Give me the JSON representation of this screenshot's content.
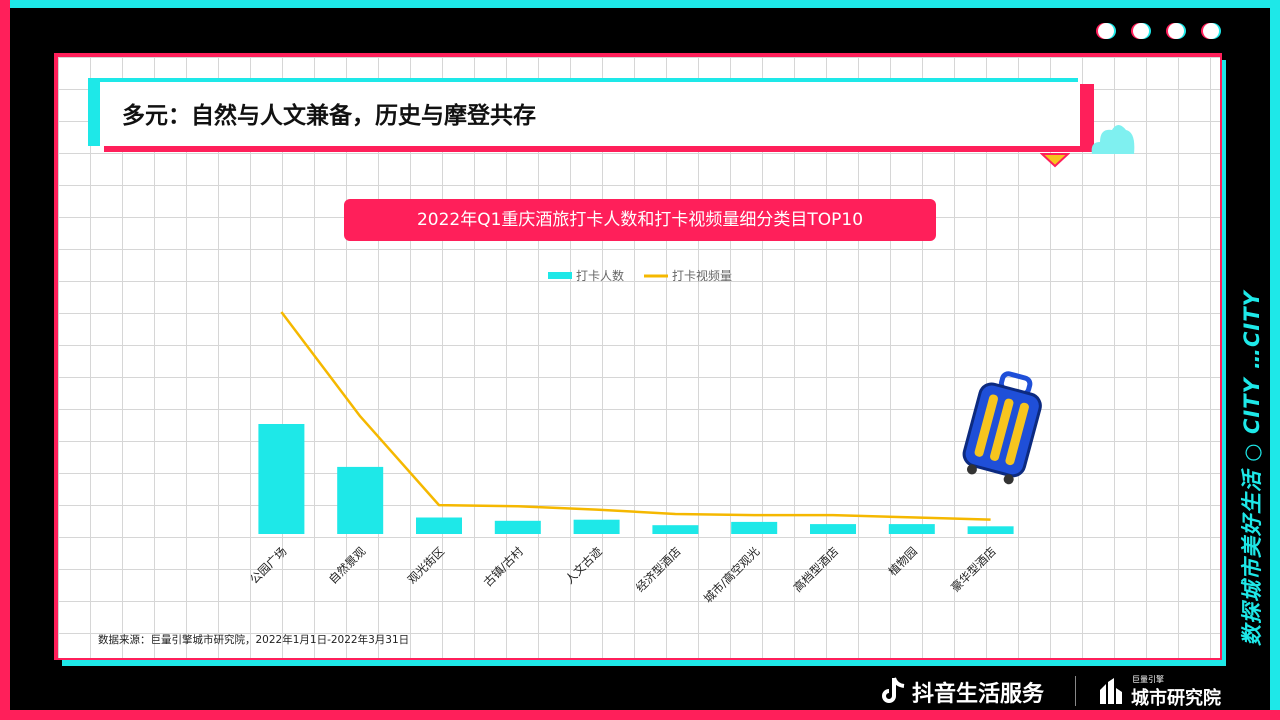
{
  "header": {
    "title": "多元：自然与人文兼备，历史与摩登共存"
  },
  "side_text": "数探城市美好生活 ○ CITY …CITY",
  "footer": {
    "source": "数据来源：巨量引擎城市研究院，2022年1月1日-2022年3月31日",
    "brand_primary": "抖音生活服务",
    "brand_secondary_top": "巨量引擎",
    "brand_secondary": "城市研究院"
  },
  "colors": {
    "bar": "#1ee8e8",
    "line": "#f5b800",
    "accent_pink": "#ff1f5a",
    "accent_cyan": "#1ee8e8"
  },
  "chart_data": {
    "type": "bar",
    "title": "2022年Q1重庆酒旅打卡人数和打卡视频量细分类目TOP10",
    "categories": [
      "公园广场",
      "自然景观",
      "观光街区",
      "古镇/古村",
      "人文古迹",
      "经济型酒店",
      "城市/高空观光",
      "高档型酒店",
      "植物园",
      "豪华型酒店"
    ],
    "series": [
      {
        "name": "打卡人数",
        "type": "bar",
        "values": [
          100,
          61,
          15,
          12,
          13,
          8,
          11,
          9,
          9,
          7
        ]
      },
      {
        "name": "打卡视频量",
        "type": "line",
        "values": [
          100,
          53,
          13,
          12.5,
          11,
          9,
          8.5,
          8.5,
          7.5,
          6.5
        ]
      }
    ],
    "ylim": [
      0,
      100
    ],
    "grid": true,
    "legend": "top-center",
    "xlabel": "",
    "ylabel": ""
  }
}
